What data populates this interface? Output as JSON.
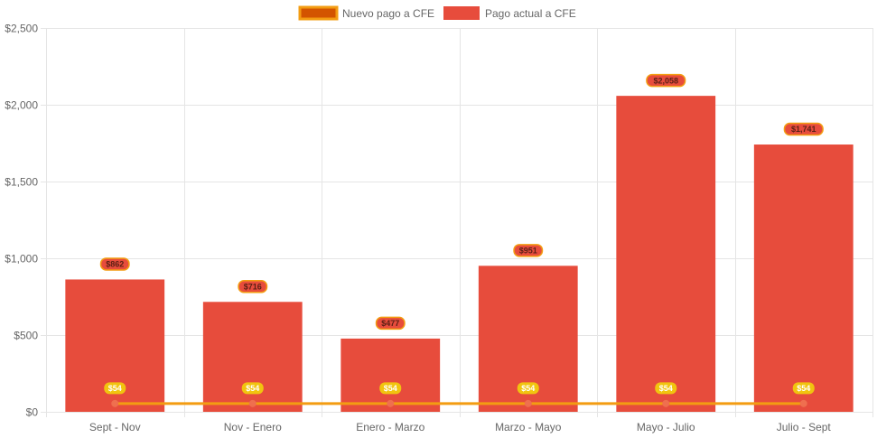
{
  "colors": {
    "bar_fill": "#e74c3c",
    "line": "#f39c12",
    "line_point": "#ef6f4f",
    "legend_line_fill": "#d35400",
    "bar_label_bg": "#e74c3c",
    "bar_label_border": "#f39c12",
    "bar_label_text": "#5a1f14",
    "line_label_bg": "#f1c40f",
    "line_label_text": "#ffffff",
    "grid": "#e5e5e5",
    "tick_text": "#666666"
  },
  "chart_data": {
    "type": "bar",
    "title": "",
    "xlabel": "",
    "ylabel": "",
    "categories": [
      "Sept - Nov",
      "Nov - Enero",
      "Enero - Marzo",
      "Marzo - Mayo",
      "Mayo - Julio",
      "Julio - Sept"
    ],
    "series": [
      {
        "name": "Nuevo pago a CFE",
        "type": "line",
        "values": [
          54,
          54,
          54,
          54,
          54,
          54
        ],
        "data_labels": [
          "$54",
          "$54",
          "$54",
          "$54",
          "$54",
          "$54"
        ]
      },
      {
        "name": "Pago actual a CFE",
        "type": "bar",
        "values": [
          862,
          716,
          477,
          951,
          2058,
          1741
        ],
        "data_labels": [
          "$862",
          "$716",
          "$477",
          "$951",
          "$2,058",
          "$1,741"
        ]
      }
    ],
    "ylim": [
      0,
      2500
    ],
    "y_ticks": [
      0,
      500,
      1000,
      1500,
      2000,
      2500
    ],
    "y_tick_labels": [
      "$0",
      "$500",
      "$1,000",
      "$1,500",
      "$2,000",
      "$2,500"
    ],
    "grid": true,
    "legend_position": "top-center"
  }
}
